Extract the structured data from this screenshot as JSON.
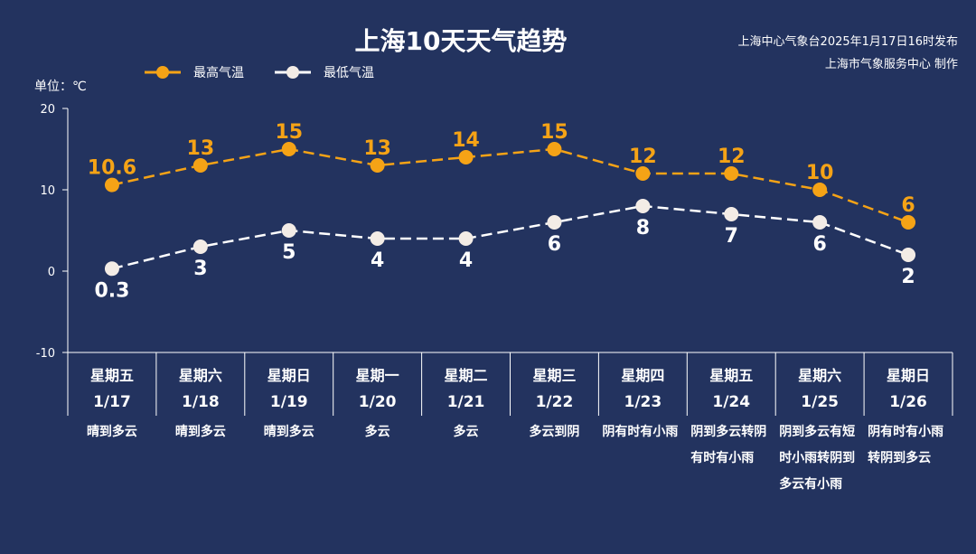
{
  "header": {
    "title": "上海10天天气趋势",
    "source_line1": "上海中心气象台2025年1月17日16时发布",
    "source_line2": "上海市气象服务中心 制作",
    "unit": "单位：℃"
  },
  "colors": {
    "high": "#f5a316",
    "low": "#f3ece6",
    "background": "#23335f"
  },
  "chart_data": {
    "type": "line",
    "title": "上海10天天气趋势",
    "ylabel": "单位：℃",
    "ylim": [
      -10,
      20
    ],
    "yticks": [
      "20",
      "10",
      "0",
      "-10"
    ],
    "categories": [
      "1/17",
      "1/18",
      "1/19",
      "1/20",
      "1/21",
      "1/22",
      "1/23",
      "1/24",
      "1/25",
      "1/26"
    ],
    "weekdays": [
      "星期五",
      "星期六",
      "星期日",
      "星期一",
      "星期二",
      "星期三",
      "星期四",
      "星期五",
      "星期六",
      "星期日"
    ],
    "weather": [
      "晴到多云",
      "晴到多云",
      "晴到多云",
      "多云",
      "多云",
      "多云到阴",
      "阴有时有小雨",
      "阴到多云转阴有时有小雨",
      "阴到多云有短时小雨转阴到多云有小雨",
      "阴有时有小雨转阴到多云"
    ],
    "series": [
      {
        "name": "最高气温",
        "values": [
          10.6,
          13,
          15,
          13,
          14,
          15,
          12,
          12,
          10,
          6
        ],
        "labels": [
          "10.6",
          "13",
          "15",
          "13",
          "14",
          "15",
          "12",
          "12",
          "10",
          "6"
        ]
      },
      {
        "name": "最低气温",
        "values": [
          0.3,
          3,
          5,
          4,
          4,
          6,
          8,
          7,
          6,
          2
        ],
        "labels": [
          "0.3",
          "3",
          "5",
          "4",
          "4",
          "6",
          "8",
          "7",
          "6",
          "2"
        ]
      }
    ],
    "legend": "top-left"
  }
}
